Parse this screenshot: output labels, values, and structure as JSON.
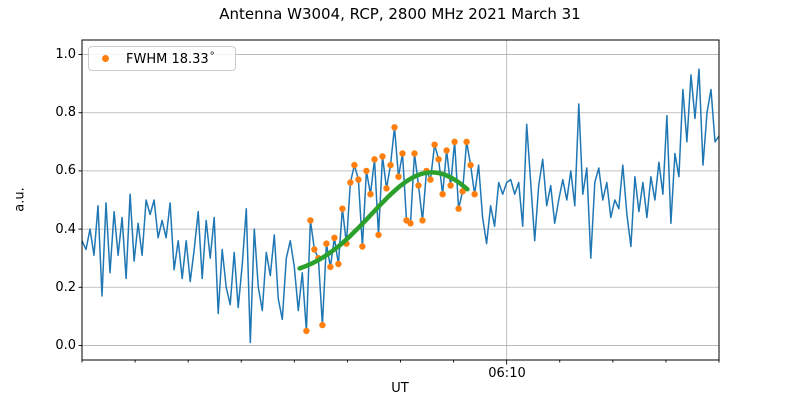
{
  "figure": {
    "title": "Antenna W3004, RCP, 2800 MHz 2021 March 31",
    "xlabel": "UT",
    "ylabel": "a.u."
  },
  "legend": {
    "label": "FWHM 18.33",
    "degree": "°",
    "marker_color": "#ff7f0e"
  },
  "colors": {
    "signal": "#1f77b4",
    "scan_points": "#ff7f0e",
    "fit": "#2ca02c",
    "grid": "#b0b0b0",
    "spine": "#000000"
  },
  "chart_data": {
    "type": "line",
    "title": "Antenna W3004, RCP, 2800 MHz 2021 March 31",
    "xlabel": "UT",
    "ylabel": "a.u.",
    "grid": "horizontal lines at every y tick; one vertical line at the 06:10 major tick",
    "legend_position": "upper left",
    "x_axis": {
      "t_start_min": 290,
      "t_end_min": 410,
      "start_time": "04:50",
      "end_time": "06:50",
      "minor_tick_step_min": 10,
      "minor_ticks_min": [
        290,
        300,
        310,
        320,
        330,
        340,
        350,
        360,
        380,
        390,
        400,
        410
      ],
      "major_tick": {
        "label": "06:10",
        "t_min": 370
      }
    },
    "ylim": [
      -0.05,
      1.05
    ],
    "yticks": {
      "values": [
        0.0,
        0.2,
        0.4,
        0.6,
        0.8,
        1.0
      ],
      "labels": [
        "0.0",
        "0.2",
        "0.4",
        "0.6",
        "0.8",
        "1.0"
      ]
    },
    "series": [
      {
        "name": "signal",
        "type": "line",
        "color": "#1f77b4",
        "note": "evenly sampled from 04:50 to 06:50 (a.u.)",
        "values": [
          0.36,
          0.33,
          0.4,
          0.31,
          0.48,
          0.17,
          0.49,
          0.25,
          0.46,
          0.31,
          0.44,
          0.23,
          0.52,
          0.29,
          0.42,
          0.31,
          0.5,
          0.45,
          0.5,
          0.37,
          0.43,
          0.37,
          0.49,
          0.26,
          0.36,
          0.23,
          0.36,
          0.22,
          0.33,
          0.46,
          0.23,
          0.43,
          0.3,
          0.44,
          0.11,
          0.33,
          0.2,
          0.14,
          0.32,
          0.13,
          0.28,
          0.47,
          0.01,
          0.4,
          0.2,
          0.12,
          0.32,
          0.24,
          0.38,
          0.16,
          0.09,
          0.3,
          0.36,
          0.27,
          0.12,
          0.25,
          0.05,
          0.43,
          0.33,
          0.3,
          0.07,
          0.35,
          0.27,
          0.37,
          0.28,
          0.47,
          0.35,
          0.56,
          0.62,
          0.57,
          0.34,
          0.6,
          0.52,
          0.64,
          0.38,
          0.65,
          0.54,
          0.62,
          0.75,
          0.58,
          0.66,
          0.43,
          0.42,
          0.66,
          0.55,
          0.43,
          0.6,
          0.57,
          0.69,
          0.64,
          0.52,
          0.67,
          0.55,
          0.7,
          0.47,
          0.53,
          0.7,
          0.62,
          0.52,
          0.62,
          0.44,
          0.35,
          0.48,
          0.41,
          0.56,
          0.52,
          0.56,
          0.57,
          0.52,
          0.56,
          0.41,
          0.76,
          0.56,
          0.36,
          0.55,
          0.64,
          0.48,
          0.55,
          0.42,
          0.5,
          0.57,
          0.5,
          0.6,
          0.48,
          0.83,
          0.52,
          0.61,
          0.3,
          0.56,
          0.61,
          0.5,
          0.56,
          0.44,
          0.5,
          0.47,
          0.62,
          0.45,
          0.34,
          0.58,
          0.46,
          0.56,
          0.44,
          0.58,
          0.5,
          0.63,
          0.52,
          0.79,
          0.42,
          0.66,
          0.58,
          0.88,
          0.7,
          0.93,
          0.78,
          0.95,
          0.62,
          0.8,
          0.88,
          0.7,
          0.72
        ]
      },
      {
        "name": "scan-points",
        "type": "scatter",
        "color": "#ff7f0e",
        "legend_label": "FWHM 18.33°",
        "source": "signal",
        "index_range": [
          56,
          98
        ]
      },
      {
        "name": "gaussian-fit",
        "type": "fit-curve",
        "color": "#2ca02c",
        "params": {
          "baseline": 0.233,
          "amplitude": 0.362,
          "center_min": 355.9,
          "sigma_min": 11.3,
          "t_start_min": 331.0,
          "t_end_min": 362.7
        }
      }
    ]
  }
}
